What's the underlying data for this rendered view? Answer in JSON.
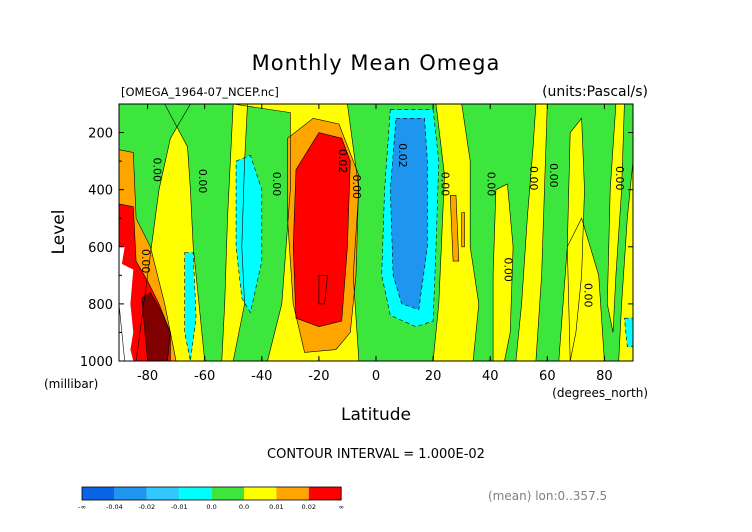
{
  "chart_data": {
    "type": "heatmap",
    "title": "Monthly Mean Omega",
    "file_label": "[OMEGA_1964-07_NCEP.nc]",
    "units_label": "(units:Pascal/s)",
    "xlabel": "Latitude",
    "x_units": "(degrees_north)",
    "ylabel": "Level",
    "y_units": "(millibar)",
    "x_range": [
      -90,
      90
    ],
    "y_range": [
      1000,
      100
    ],
    "x_ticks": [
      "-80",
      "-60",
      "-40",
      "-20",
      "0",
      "20",
      "40",
      "60",
      "80"
    ],
    "y_ticks": [
      "200",
      "400",
      "600",
      "800",
      "1000"
    ],
    "contour_interval_text": "CONTOUR INTERVAL = 1.000E-02",
    "footer_note": "(mean) lon:0..357.5",
    "contour_labels": [
      {
        "text": "0.00",
        "lat": -82,
        "lev": 650
      },
      {
        "text": "0.00",
        "lat": -78,
        "lev": 330
      },
      {
        "text": "0.00",
        "lat": -62,
        "lev": 370
      },
      {
        "text": "0.00",
        "lat": -36,
        "lev": 380
      },
      {
        "text": "0.02",
        "lat": -13,
        "lev": 300
      },
      {
        "text": "0.00",
        "lat": -8,
        "lev": 390
      },
      {
        "text": "0.02",
        "lat": 8,
        "lev": 280
      },
      {
        "text": "0.00",
        "lat": 23,
        "lev": 380
      },
      {
        "text": "0.00",
        "lat": 39,
        "lev": 380
      },
      {
        "text": "0.00",
        "lat": 45,
        "lev": 680
      },
      {
        "text": "0.00",
        "lat": 54,
        "lev": 360
      },
      {
        "text": "0.00",
        "lat": 61,
        "lev": 350
      },
      {
        "text": "0.00",
        "lat": 73,
        "lev": 770
      },
      {
        "text": "0.00",
        "lat": 84,
        "lev": 360
      }
    ],
    "color_levels": [
      {
        "label": "-∞",
        "color": "#0a64e6"
      },
      {
        "label": "-0.04",
        "color": "#1e96f0"
      },
      {
        "label": "-0.02",
        "color": "#32c8ff"
      },
      {
        "label": "-0.01",
        "color": "#00ffff"
      },
      {
        "label": "0.0",
        "color": "#3ce63c"
      },
      {
        "label": "0.0",
        "color": "#ffff00"
      },
      {
        "label": "0.01",
        "color": "#ffa500"
      },
      {
        "label": "0.02",
        "color": "#ff0000"
      },
      {
        "label": "∞",
        "color": ""
      }
    ],
    "regions": [
      {
        "fill": "#ffff00",
        "pts": [
          [
            -90,
            1000
          ],
          [
            90,
            1000
          ],
          [
            90,
            100
          ],
          [
            -90,
            100
          ]
        ]
      },
      {
        "fill": "#3ce63c",
        "pts": [
          [
            -90,
            100
          ],
          [
            -65,
            100
          ],
          [
            -72,
            220
          ],
          [
            -76,
            400
          ],
          [
            -80,
            700
          ],
          [
            -84,
            1000
          ],
          [
            -90,
            1000
          ],
          [
            -90,
            600
          ],
          [
            -90,
            310
          ]
        ]
      },
      {
        "fill": "#3ce63c",
        "pts": [
          [
            -74,
            100
          ],
          [
            -50,
            100
          ],
          [
            -30,
            130
          ],
          [
            -30,
            400
          ],
          [
            -33,
            800
          ],
          [
            -38,
            1000
          ],
          [
            -60,
            1000
          ],
          [
            -62,
            800
          ],
          [
            -64,
            600
          ],
          [
            -65,
            400
          ],
          [
            -66,
            250
          ]
        ]
      },
      {
        "fill": "#3ce63c",
        "pts": [
          [
            -10,
            100
          ],
          [
            21,
            100
          ],
          [
            24,
            350
          ],
          [
            22,
            800
          ],
          [
            20,
            1000
          ],
          [
            -6,
            1000
          ],
          [
            -8,
            700
          ],
          [
            -6,
            400
          ]
        ]
      },
      {
        "fill": "#3ce63c",
        "pts": [
          [
            30,
            100
          ],
          [
            56,
            100
          ],
          [
            55,
            250
          ],
          [
            53,
            500
          ],
          [
            51,
            800
          ],
          [
            49,
            1000
          ],
          [
            34,
            1000
          ],
          [
            36,
            800
          ],
          [
            33,
            600
          ],
          [
            33,
            300
          ]
        ]
      },
      {
        "fill": "#3ce63c",
        "pts": [
          [
            60,
            100
          ],
          [
            90,
            100
          ],
          [
            90,
            300
          ],
          [
            88,
            500
          ],
          [
            86,
            800
          ],
          [
            85,
            1000
          ],
          [
            80,
            1000
          ],
          [
            78,
            700
          ],
          [
            72,
            500
          ],
          [
            67,
            600
          ],
          [
            64,
            1000
          ],
          [
            56,
            1000
          ],
          [
            58,
            700
          ]
        ]
      },
      {
        "fill": "#ffff00",
        "pts": [
          [
            -50,
            100
          ],
          [
            -45,
            100
          ],
          [
            -46,
            300
          ],
          [
            -47,
            600
          ],
          [
            -46,
            800
          ],
          [
            -50,
            1000
          ],
          [
            -54,
            1000
          ],
          [
            -53,
            800
          ],
          [
            -52,
            500
          ]
        ]
      },
      {
        "fill": "#ffff00",
        "pts": [
          [
            42,
            400
          ],
          [
            46,
            380
          ],
          [
            48,
            600
          ],
          [
            47,
            900
          ],
          [
            45,
            1000
          ],
          [
            41,
            1000
          ],
          [
            41,
            700
          ]
        ]
      },
      {
        "fill": "#ffff00",
        "pts": [
          [
            68,
            200
          ],
          [
            72,
            150
          ],
          [
            73,
            400
          ],
          [
            72,
            700
          ],
          [
            70,
            900
          ],
          [
            68,
            1000
          ],
          [
            67,
            600
          ]
        ]
      },
      {
        "fill": "#ffff00",
        "pts": [
          [
            84,
            100
          ],
          [
            87,
            100
          ],
          [
            86,
            400
          ],
          [
            84,
            700
          ],
          [
            83,
            900
          ],
          [
            81,
            800
          ],
          [
            82,
            400
          ]
        ]
      },
      {
        "fill": "#00ffff",
        "pts": [
          [
            -49,
            300
          ],
          [
            -44,
            280
          ],
          [
            -40,
            400
          ],
          [
            -40,
            650
          ],
          [
            -44,
            830
          ],
          [
            -47,
            780
          ],
          [
            -49,
            600
          ]
        ]
      },
      {
        "fill": "#00ffff",
        "pts": [
          [
            -67,
            620
          ],
          [
            -64,
            620
          ],
          [
            -63,
            850
          ],
          [
            -65,
            1000
          ],
          [
            -67,
            900
          ]
        ]
      },
      {
        "fill": "#00ffff",
        "pts": [
          [
            87,
            850
          ],
          [
            90,
            850
          ],
          [
            90,
            950
          ],
          [
            88,
            950
          ]
        ]
      },
      {
        "fill": "#00ffff",
        "pts": [
          [
            5,
            120
          ],
          [
            20,
            120
          ],
          [
            22,
            300
          ],
          [
            21,
            600
          ],
          [
            20,
            860
          ],
          [
            14,
            880
          ],
          [
            5,
            840
          ],
          [
            2,
            700
          ],
          [
            3,
            400
          ]
        ]
      },
      {
        "fill": "#1e96f0",
        "pts": [
          [
            7,
            150
          ],
          [
            17,
            150
          ],
          [
            18,
            300
          ],
          [
            18,
            600
          ],
          [
            15,
            820
          ],
          [
            9,
            800
          ],
          [
            6,
            700
          ],
          [
            5,
            400
          ]
        ]
      },
      {
        "fill": "#ffa500",
        "pts": [
          [
            -90,
            260
          ],
          [
            -85,
            270
          ],
          [
            -84,
            500
          ],
          [
            -79,
            600
          ],
          [
            -74,
            800
          ],
          [
            -70,
            1000
          ],
          [
            -88,
            1000
          ],
          [
            -90,
            800
          ]
        ]
      },
      {
        "fill": "#ffa500",
        "pts": [
          [
            -31,
            220
          ],
          [
            -22,
            150
          ],
          [
            -13,
            170
          ],
          [
            -6,
            350
          ],
          [
            -7,
            700
          ],
          [
            -9,
            900
          ],
          [
            -14,
            960
          ],
          [
            -25,
            970
          ],
          [
            -29,
            800
          ],
          [
            -31,
            500
          ]
        ]
      },
      {
        "fill": "#ffa500",
        "pts": [
          [
            -20,
            700
          ],
          [
            -17,
            700
          ],
          [
            -18,
            800
          ],
          [
            -20,
            800
          ]
        ]
      },
      {
        "fill": "#ffa500",
        "pts": [
          [
            26,
            420
          ],
          [
            28,
            420
          ],
          [
            29,
            650
          ],
          [
            27,
            650
          ]
        ]
      },
      {
        "fill": "#ffa500",
        "pts": [
          [
            30,
            480
          ],
          [
            31,
            480
          ],
          [
            31,
            600
          ],
          [
            30,
            600
          ]
        ]
      },
      {
        "fill": "#ff0000",
        "pts": [
          [
            -90,
            450
          ],
          [
            -85,
            460
          ],
          [
            -84,
            650
          ],
          [
            -80,
            720
          ],
          [
            -76,
            800
          ],
          [
            -72,
            900
          ],
          [
            -72,
            1000
          ],
          [
            -90,
            1000
          ]
        ]
      },
      {
        "fill": "#ff0000",
        "pts": [
          [
            -28,
            330
          ],
          [
            -20,
            200
          ],
          [
            -12,
            220
          ],
          [
            -9,
            300
          ],
          [
            -10,
            600
          ],
          [
            -12,
            860
          ],
          [
            -20,
            880
          ],
          [
            -28,
            850
          ],
          [
            -29,
            600
          ]
        ]
      },
      {
        "fill": "#800000",
        "pts": [
          [
            -82,
            780
          ],
          [
            -79,
            760
          ],
          [
            -75,
            830
          ],
          [
            -72,
            900
          ],
          [
            -73,
            1000
          ],
          [
            -80,
            1000
          ]
        ]
      },
      {
        "fill": "#ffffff",
        "pts": [
          [
            -90,
            600
          ],
          [
            -88,
            600
          ],
          [
            -89,
            660
          ],
          [
            -85,
            680
          ],
          [
            -86,
            800
          ],
          [
            -85,
            900
          ],
          [
            -86,
            960
          ],
          [
            -85,
            1000
          ],
          [
            -90,
            1000
          ]
        ]
      }
    ]
  }
}
